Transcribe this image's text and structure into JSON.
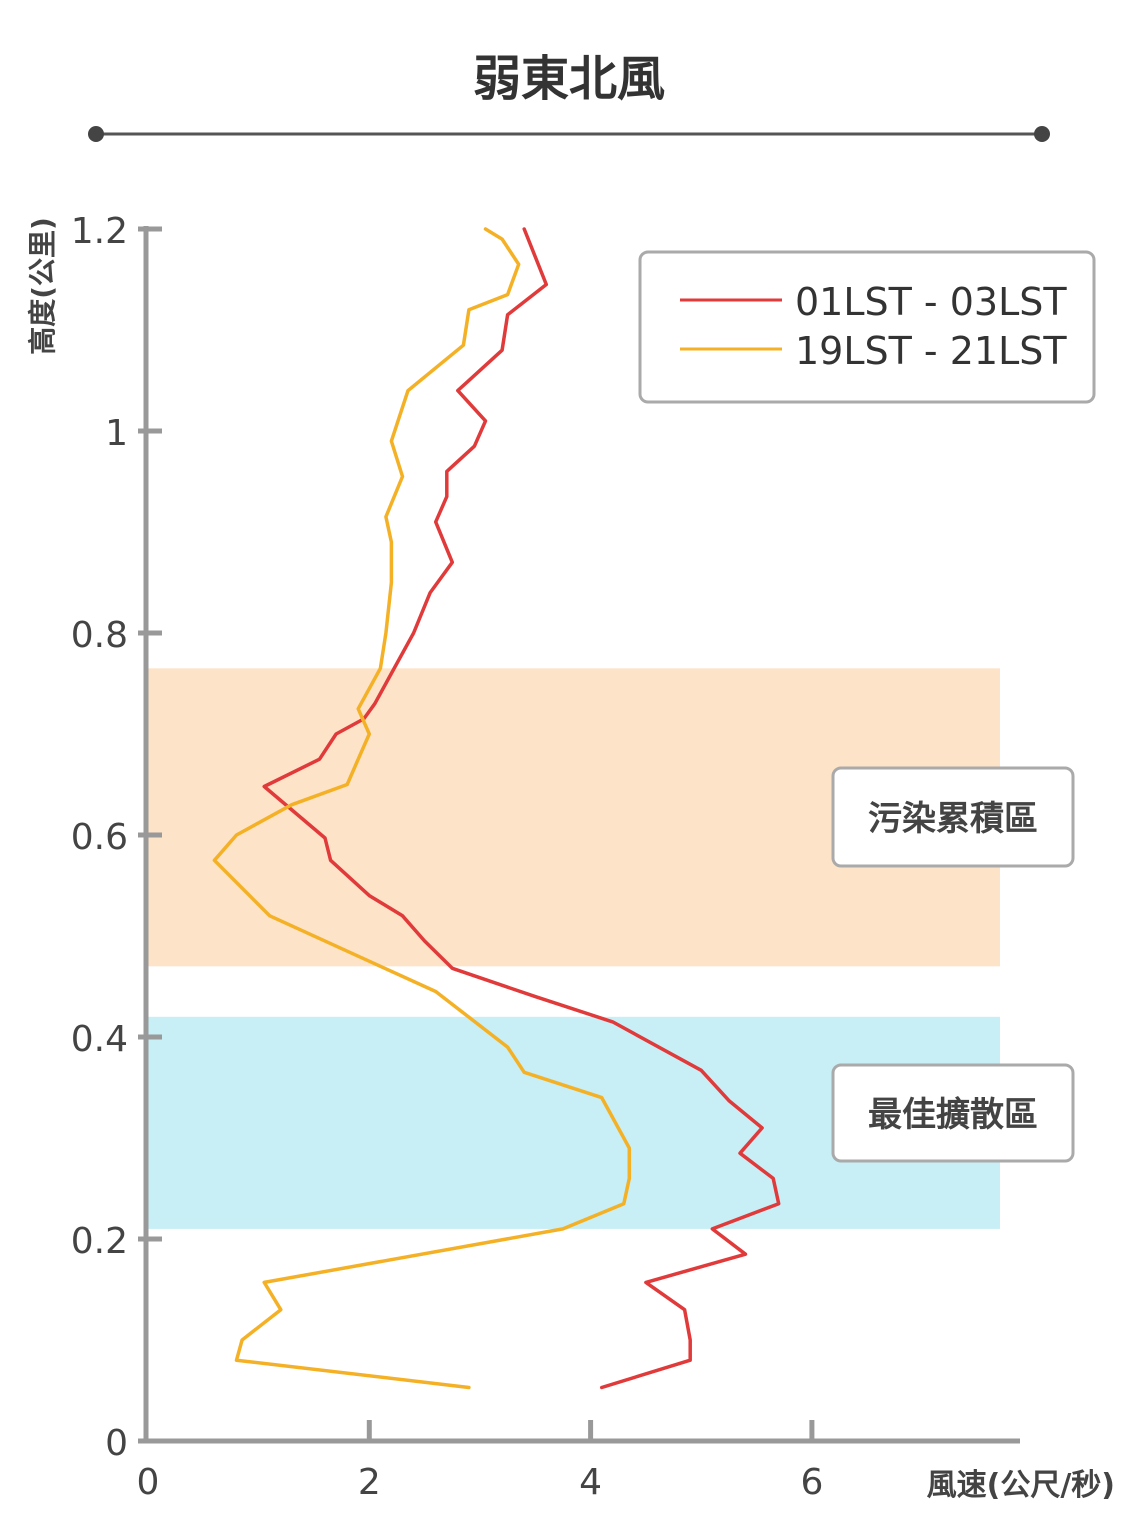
{
  "chart_data": {
    "type": "line",
    "title": "弱東北風",
    "xlabel": "風速(公尺/秒)",
    "ylabel": "高度(公里)",
    "xlim": [
      0,
      7.7
    ],
    "ylim": [
      0,
      1.2
    ],
    "x_ticks": [
      0,
      2,
      4,
      6
    ],
    "y_ticks": [
      0,
      0.2,
      0.4,
      0.6,
      0.8,
      1,
      1.2
    ],
    "x_tick_labels": [
      "0",
      "2",
      "4",
      "6"
    ],
    "y_tick_labels": [
      "0",
      "0.2",
      "0.4",
      "0.6",
      "0.8",
      "1",
      "1.2"
    ],
    "grid": false,
    "legend_position": "top-right",
    "bands": [
      {
        "label": "污染累積區",
        "y_range": [
          0.47,
          0.765
        ],
        "color": "#fde3c8"
      },
      {
        "label": "最佳擴散區",
        "y_range": [
          0.21,
          0.42
        ],
        "color": "#c8eef6"
      }
    ],
    "series": [
      {
        "name": "01LST - 03LST",
        "color": "#e03a3a",
        "points": [
          [
            4.1,
            0.053
          ],
          [
            4.9,
            0.08
          ],
          [
            4.9,
            0.1
          ],
          [
            4.85,
            0.13
          ],
          [
            4.5,
            0.157
          ],
          [
            5.4,
            0.185
          ],
          [
            5.1,
            0.21
          ],
          [
            5.7,
            0.235
          ],
          [
            5.65,
            0.26
          ],
          [
            5.35,
            0.285
          ],
          [
            5.55,
            0.31
          ],
          [
            5.25,
            0.337
          ],
          [
            5.0,
            0.367
          ],
          [
            4.2,
            0.415
          ],
          [
            3.5,
            0.44
          ],
          [
            2.75,
            0.468
          ],
          [
            2.5,
            0.495
          ],
          [
            2.3,
            0.52
          ],
          [
            2.0,
            0.54
          ],
          [
            1.65,
            0.575
          ],
          [
            1.6,
            0.597
          ],
          [
            1.05,
            0.648
          ],
          [
            1.55,
            0.675
          ],
          [
            1.7,
            0.7
          ],
          [
            1.95,
            0.715
          ],
          [
            2.05,
            0.73
          ],
          [
            2.2,
            0.76
          ],
          [
            2.4,
            0.8
          ],
          [
            2.55,
            0.84
          ],
          [
            2.75,
            0.87
          ],
          [
            2.6,
            0.91
          ],
          [
            2.7,
            0.935
          ],
          [
            2.7,
            0.96
          ],
          [
            2.95,
            0.985
          ],
          [
            3.05,
            1.01
          ],
          [
            2.8,
            1.04
          ],
          [
            3.2,
            1.08
          ],
          [
            3.25,
            1.115
          ],
          [
            3.6,
            1.145
          ],
          [
            3.4,
            1.2
          ]
        ]
      },
      {
        "name": "19LST - 21LST",
        "color": "#f4b126",
        "points": [
          [
            2.9,
            0.053
          ],
          [
            0.8,
            0.08
          ],
          [
            0.85,
            0.1
          ],
          [
            1.2,
            0.13
          ],
          [
            1.05,
            0.157
          ],
          [
            3.75,
            0.21
          ],
          [
            4.3,
            0.235
          ],
          [
            4.35,
            0.26
          ],
          [
            4.35,
            0.29
          ],
          [
            4.1,
            0.34
          ],
          [
            3.4,
            0.365
          ],
          [
            3.25,
            0.39
          ],
          [
            2.6,
            0.445
          ],
          [
            2.1,
            0.47
          ],
          [
            1.1,
            0.52
          ],
          [
            0.6,
            0.575
          ],
          [
            0.8,
            0.6
          ],
          [
            1.3,
            0.63
          ],
          [
            1.8,
            0.65
          ],
          [
            1.9,
            0.675
          ],
          [
            2.0,
            0.7
          ],
          [
            1.9,
            0.725
          ],
          [
            2.1,
            0.765
          ],
          [
            2.15,
            0.8
          ],
          [
            2.2,
            0.85
          ],
          [
            2.2,
            0.89
          ],
          [
            2.15,
            0.915
          ],
          [
            2.3,
            0.955
          ],
          [
            2.2,
            0.99
          ],
          [
            2.35,
            1.04
          ],
          [
            2.85,
            1.085
          ],
          [
            2.9,
            1.12
          ],
          [
            3.25,
            1.135
          ],
          [
            3.35,
            1.165
          ],
          [
            3.2,
            1.19
          ],
          [
            3.05,
            1.2
          ]
        ]
      }
    ]
  }
}
